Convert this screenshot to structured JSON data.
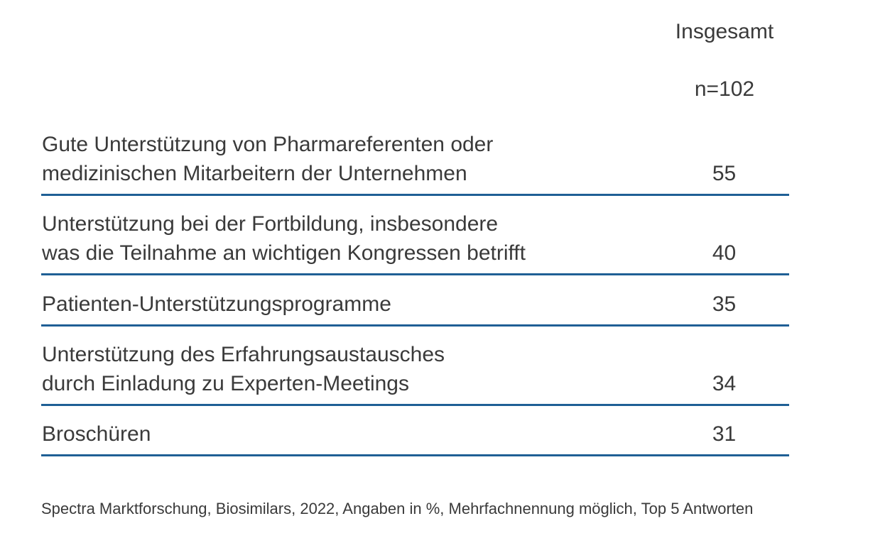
{
  "header": {
    "title": "Insgesamt",
    "n": "n=102"
  },
  "chart_data": {
    "type": "table",
    "title": "",
    "columns": [
      "",
      "Insgesamt n=102"
    ],
    "unit": "%",
    "rows": [
      {
        "label": "Gute Unterstützung von Pharmareferenten oder\nmedizinischen Mitarbeitern der Unternehmen",
        "value": 55
      },
      {
        "label": "Unterstützung bei der Fortbildung, insbesondere\nwas die Teilnahme an wichtigen Kongressen betrifft",
        "value": 40
      },
      {
        "label": "Patienten-Unterstützungsprogramme",
        "value": 35
      },
      {
        "label": "Unterstützung des Erfahrungsaustausches\ndurch Einladung zu Experten-Meetings",
        "value": 34
      },
      {
        "label": "Broschüren",
        "value": 31
      }
    ]
  },
  "footnote": "Spectra Marktforschung, Biosimilars, 2022, Angaben in %, Mehrfachnennung möglich, Top 5 Antworten"
}
